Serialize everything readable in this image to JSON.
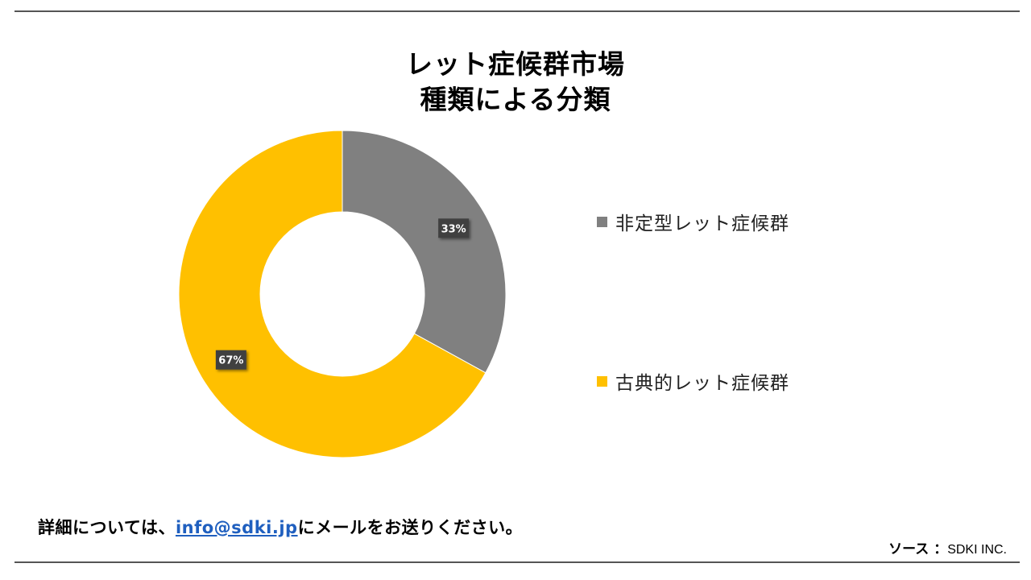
{
  "title": {
    "line1": "レット症候群市場",
    "line2": "種類による分類"
  },
  "chart_data": {
    "type": "donut",
    "title": "レット症候群市場 種類による分類",
    "categories": [
      "非定型レット症候群",
      "古典的レット症候群"
    ],
    "values": [
      33,
      67
    ],
    "value_labels": [
      "33%",
      "67%"
    ],
    "colors": [
      "#808080",
      "#FFC000"
    ],
    "legend_placement": "right"
  },
  "legend": {
    "items": [
      {
        "label": "非定型レット症候群",
        "color": "#808080"
      },
      {
        "label": "古典的レット症候群",
        "color": "#FFC000"
      }
    ]
  },
  "footer": {
    "prefix": "詳細については、",
    "email": "info@sdki.jp",
    "suffix": "にメールをお送りください。"
  },
  "source": {
    "label": "ソース ：",
    "value": "SDKI INC."
  }
}
